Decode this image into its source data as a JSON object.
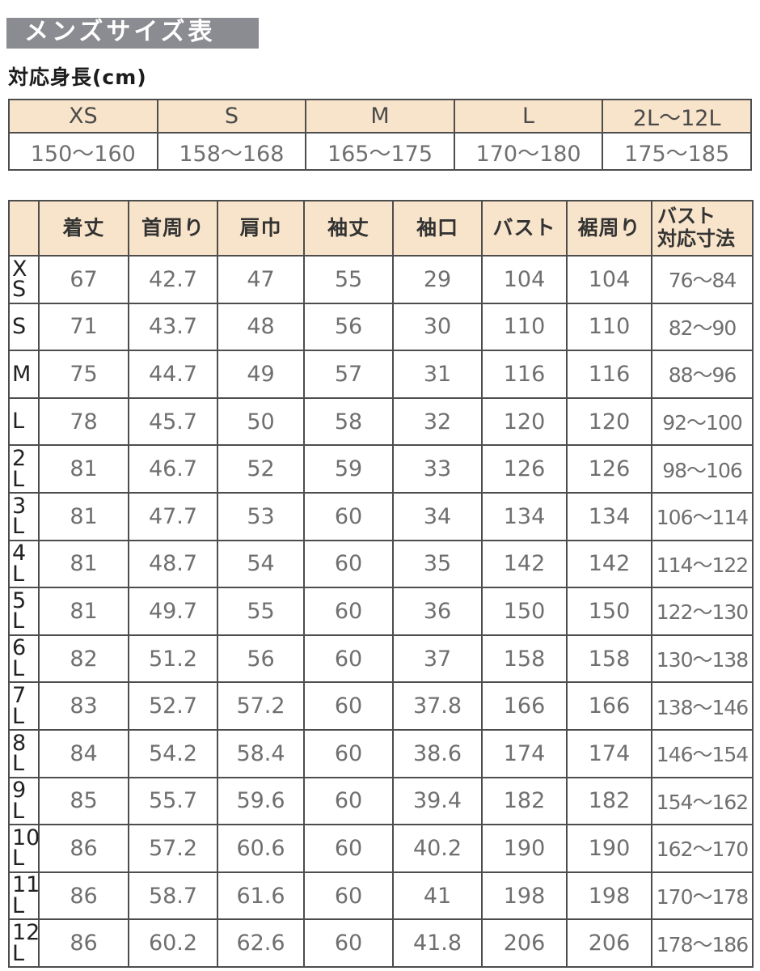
{
  "page": {
    "title": "メンズサイズ表",
    "subtitle": "対応身長(cm)"
  },
  "colors": {
    "title_bg": "#8b8b92",
    "title_text": "#ffffff",
    "header_bg": "#f8e4ca",
    "border": "#4d4d4d",
    "value_text": "#6f6f6f",
    "label_text": "#222222"
  },
  "height_table": {
    "columns": [
      "XS",
      "S",
      "M",
      "L",
      "2L〜12L"
    ],
    "values": [
      "150〜160",
      "158〜168",
      "165〜175",
      "170〜180",
      "175〜185"
    ]
  },
  "size_table": {
    "columns": [
      "着丈",
      "首周り",
      "肩巾",
      "袖丈",
      "袖口",
      "バスト",
      "裾周り",
      "バスト\n対応寸法"
    ],
    "rows": [
      {
        "label": "XS",
        "label_lines": [
          "X",
          "S"
        ],
        "values": [
          "67",
          "42.7",
          "47",
          "55",
          "29",
          "104",
          "104",
          "76〜84"
        ]
      },
      {
        "label": "S",
        "label_lines": [
          "S"
        ],
        "values": [
          "71",
          "43.7",
          "48",
          "56",
          "30",
          "110",
          "110",
          "82〜90"
        ]
      },
      {
        "label": "M",
        "label_lines": [
          "M"
        ],
        "values": [
          "75",
          "44.7",
          "49",
          "57",
          "31",
          "116",
          "116",
          "88〜96"
        ]
      },
      {
        "label": "L",
        "label_lines": [
          "L"
        ],
        "values": [
          "78",
          "45.7",
          "50",
          "58",
          "32",
          "120",
          "120",
          "92〜100"
        ]
      },
      {
        "label": "2L",
        "label_lines": [
          "2",
          "L"
        ],
        "values": [
          "81",
          "46.7",
          "52",
          "59",
          "33",
          "126",
          "126",
          "98〜106"
        ]
      },
      {
        "label": "3L",
        "label_lines": [
          "3",
          "L"
        ],
        "values": [
          "81",
          "47.7",
          "53",
          "60",
          "34",
          "134",
          "134",
          "106〜114"
        ]
      },
      {
        "label": "4L",
        "label_lines": [
          "4",
          "L"
        ],
        "values": [
          "81",
          "48.7",
          "54",
          "60",
          "35",
          "142",
          "142",
          "114〜122"
        ]
      },
      {
        "label": "5L",
        "label_lines": [
          "5",
          "L"
        ],
        "values": [
          "81",
          "49.7",
          "55",
          "60",
          "36",
          "150",
          "150",
          "122〜130"
        ]
      },
      {
        "label": "6L",
        "label_lines": [
          "6",
          "L"
        ],
        "values": [
          "82",
          "51.2",
          "56",
          "60",
          "37",
          "158",
          "158",
          "130〜138"
        ]
      },
      {
        "label": "7L",
        "label_lines": [
          "7",
          "L"
        ],
        "values": [
          "83",
          "52.7",
          "57.2",
          "60",
          "37.8",
          "166",
          "166",
          "138〜146"
        ]
      },
      {
        "label": "8L",
        "label_lines": [
          "8",
          "L"
        ],
        "values": [
          "84",
          "54.2",
          "58.4",
          "60",
          "38.6",
          "174",
          "174",
          "146〜154"
        ]
      },
      {
        "label": "9L",
        "label_lines": [
          "9",
          "L"
        ],
        "values": [
          "85",
          "55.7",
          "59.6",
          "60",
          "39.4",
          "182",
          "182",
          "154〜162"
        ]
      },
      {
        "label": "10L",
        "label_lines": [
          "10",
          "L"
        ],
        "values": [
          "86",
          "57.2",
          "60.6",
          "60",
          "40.2",
          "190",
          "190",
          "162〜170"
        ]
      },
      {
        "label": "11L",
        "label_lines": [
          "11",
          "L"
        ],
        "values": [
          "86",
          "58.7",
          "61.6",
          "60",
          "41",
          "198",
          "198",
          "170〜178"
        ]
      },
      {
        "label": "12L",
        "label_lines": [
          "12",
          "L"
        ],
        "values": [
          "86",
          "60.2",
          "62.6",
          "60",
          "41.8",
          "206",
          "206",
          "178〜186"
        ]
      }
    ]
  }
}
